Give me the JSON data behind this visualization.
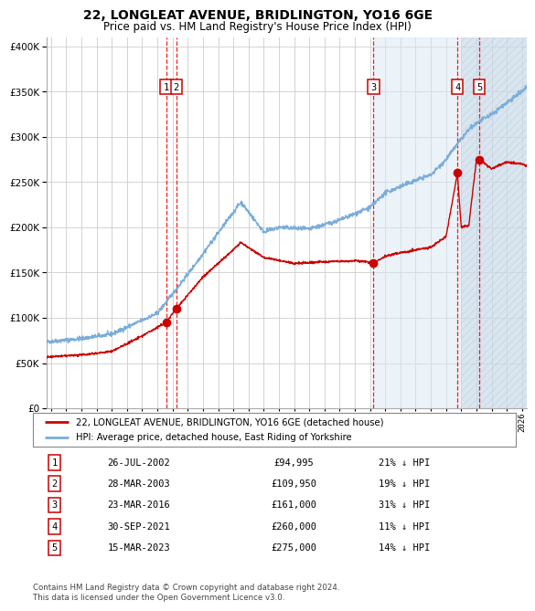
{
  "title": "22, LONGLEAT AVENUE, BRIDLINGTON, YO16 6GE",
  "subtitle": "Price paid vs. HM Land Registry's House Price Index (HPI)",
  "legend_property": "22, LONGLEAT AVENUE, BRIDLINGTON, YO16 6GE (detached house)",
  "legend_hpi": "HPI: Average price, detached house, East Riding of Yorkshire",
  "sales": [
    {
      "num": 1,
      "date_label": "26-JUL-2002",
      "date_x": 2002.57,
      "price": 94995,
      "pct": "21% ↓ HPI"
    },
    {
      "num": 2,
      "date_label": "28-MAR-2003",
      "date_x": 2003.24,
      "price": 109950,
      "pct": "19% ↓ HPI"
    },
    {
      "num": 3,
      "date_label": "23-MAR-2016",
      "date_x": 2016.23,
      "price": 161000,
      "pct": "31% ↓ HPI"
    },
    {
      "num": 4,
      "date_label": "30-SEP-2021",
      "date_x": 2021.75,
      "price": 260000,
      "pct": "11% ↓ HPI"
    },
    {
      "num": 5,
      "date_label": "15-MAR-2023",
      "date_x": 2023.21,
      "price": 275000,
      "pct": "14% ↓ HPI"
    }
  ],
  "property_color": "#cc0000",
  "hpi_color": "#7aadda",
  "sale_marker_color": "#cc0000",
  "vline_color": "#ff0000",
  "box_color": "#cc0000",
  "shade_color": "#d8e8f5",
  "hatch_color": "#c0d0e0",
  "ylim": [
    0,
    410000
  ],
  "xlim_start": 1994.7,
  "xlim_end": 2026.3,
  "yticks": [
    0,
    50000,
    100000,
    150000,
    200000,
    250000,
    300000,
    350000,
    400000
  ],
  "shade_start": 2016.23,
  "hatch_start": 2022.0,
  "footer": "Contains HM Land Registry data © Crown copyright and database right 2024.\nThis data is licensed under the Open Government Licence v3.0.",
  "background_color": "#ffffff",
  "grid_color": "#cccccc"
}
